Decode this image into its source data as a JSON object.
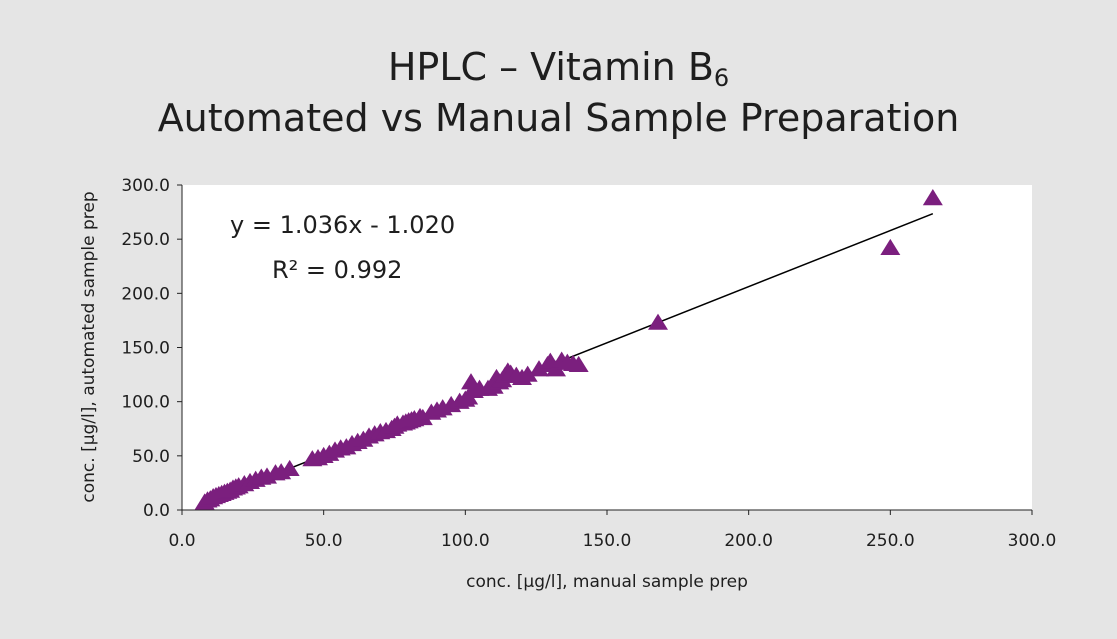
{
  "chart_data": {
    "type": "scatter",
    "title_line1": "HPLC – Vitamin B",
    "title_subscript": "6",
    "title_line2": "Automated vs Manual Sample Preparation",
    "xlabel": "conc. [µg/l], manual sample prep",
    "ylabel": "conc. [µg/l], automated sample prep",
    "xlim": [
      0,
      300
    ],
    "ylim": [
      0,
      300
    ],
    "xticks": [
      "0.0",
      "50.0",
      "100.0",
      "150.0",
      "200.0",
      "250.0",
      "300.0"
    ],
    "yticks": [
      "0.0",
      "50.0",
      "100.0",
      "150.0",
      "200.0",
      "250.0",
      "300.0"
    ],
    "grid": false,
    "marker_color": "#7b1f7e",
    "marker": "triangle",
    "equation": "y = 1.036x - 1.020",
    "r2_label": "R² = 0.992",
    "trendline": {
      "slope": 1.036,
      "intercept": -1.02,
      "x_range": [
        10,
        265
      ]
    },
    "points": [
      [
        8,
        7
      ],
      [
        9,
        9
      ],
      [
        10,
        10
      ],
      [
        11,
        12
      ],
      [
        12,
        13
      ],
      [
        13,
        14
      ],
      [
        14,
        15
      ],
      [
        15,
        16
      ],
      [
        16,
        17
      ],
      [
        17,
        18
      ],
      [
        18,
        20
      ],
      [
        19,
        21
      ],
      [
        20,
        22
      ],
      [
        22,
        24
      ],
      [
        24,
        26
      ],
      [
        26,
        28
      ],
      [
        28,
        30
      ],
      [
        30,
        31
      ],
      [
        33,
        34
      ],
      [
        35,
        35
      ],
      [
        38,
        38
      ],
      [
        46,
        47
      ],
      [
        48,
        48
      ],
      [
        50,
        50
      ],
      [
        52,
        52
      ],
      [
        54,
        55
      ],
      [
        56,
        57
      ],
      [
        58,
        58
      ],
      [
        60,
        61
      ],
      [
        62,
        63
      ],
      [
        64,
        65
      ],
      [
        66,
        68
      ],
      [
        68,
        70
      ],
      [
        70,
        72
      ],
      [
        72,
        73
      ],
      [
        74,
        75
      ],
      [
        75,
        77
      ],
      [
        76,
        79
      ],
      [
        78,
        80
      ],
      [
        79,
        81
      ],
      [
        80,
        82
      ],
      [
        81,
        83
      ],
      [
        82,
        84
      ],
      [
        84,
        86
      ],
      [
        85,
        85
      ],
      [
        88,
        90
      ],
      [
        90,
        92
      ],
      [
        92,
        94
      ],
      [
        95,
        97
      ],
      [
        98,
        100
      ],
      [
        100,
        102
      ],
      [
        101,
        104
      ],
      [
        102,
        118
      ],
      [
        103,
        110
      ],
      [
        105,
        112
      ],
      [
        108,
        112
      ],
      [
        110,
        114
      ],
      [
        111,
        122
      ],
      [
        112,
        118
      ],
      [
        113,
        120
      ],
      [
        114,
        124
      ],
      [
        115,
        128
      ],
      [
        116,
        126
      ],
      [
        118,
        124
      ],
      [
        120,
        122
      ],
      [
        122,
        125
      ],
      [
        126,
        130
      ],
      [
        129,
        134
      ],
      [
        130,
        137
      ],
      [
        132,
        130
      ],
      [
        134,
        138
      ],
      [
        136,
        136
      ],
      [
        138,
        135
      ],
      [
        140,
        134
      ],
      [
        168,
        173
      ],
      [
        250,
        242
      ],
      [
        265,
        288
      ]
    ]
  }
}
